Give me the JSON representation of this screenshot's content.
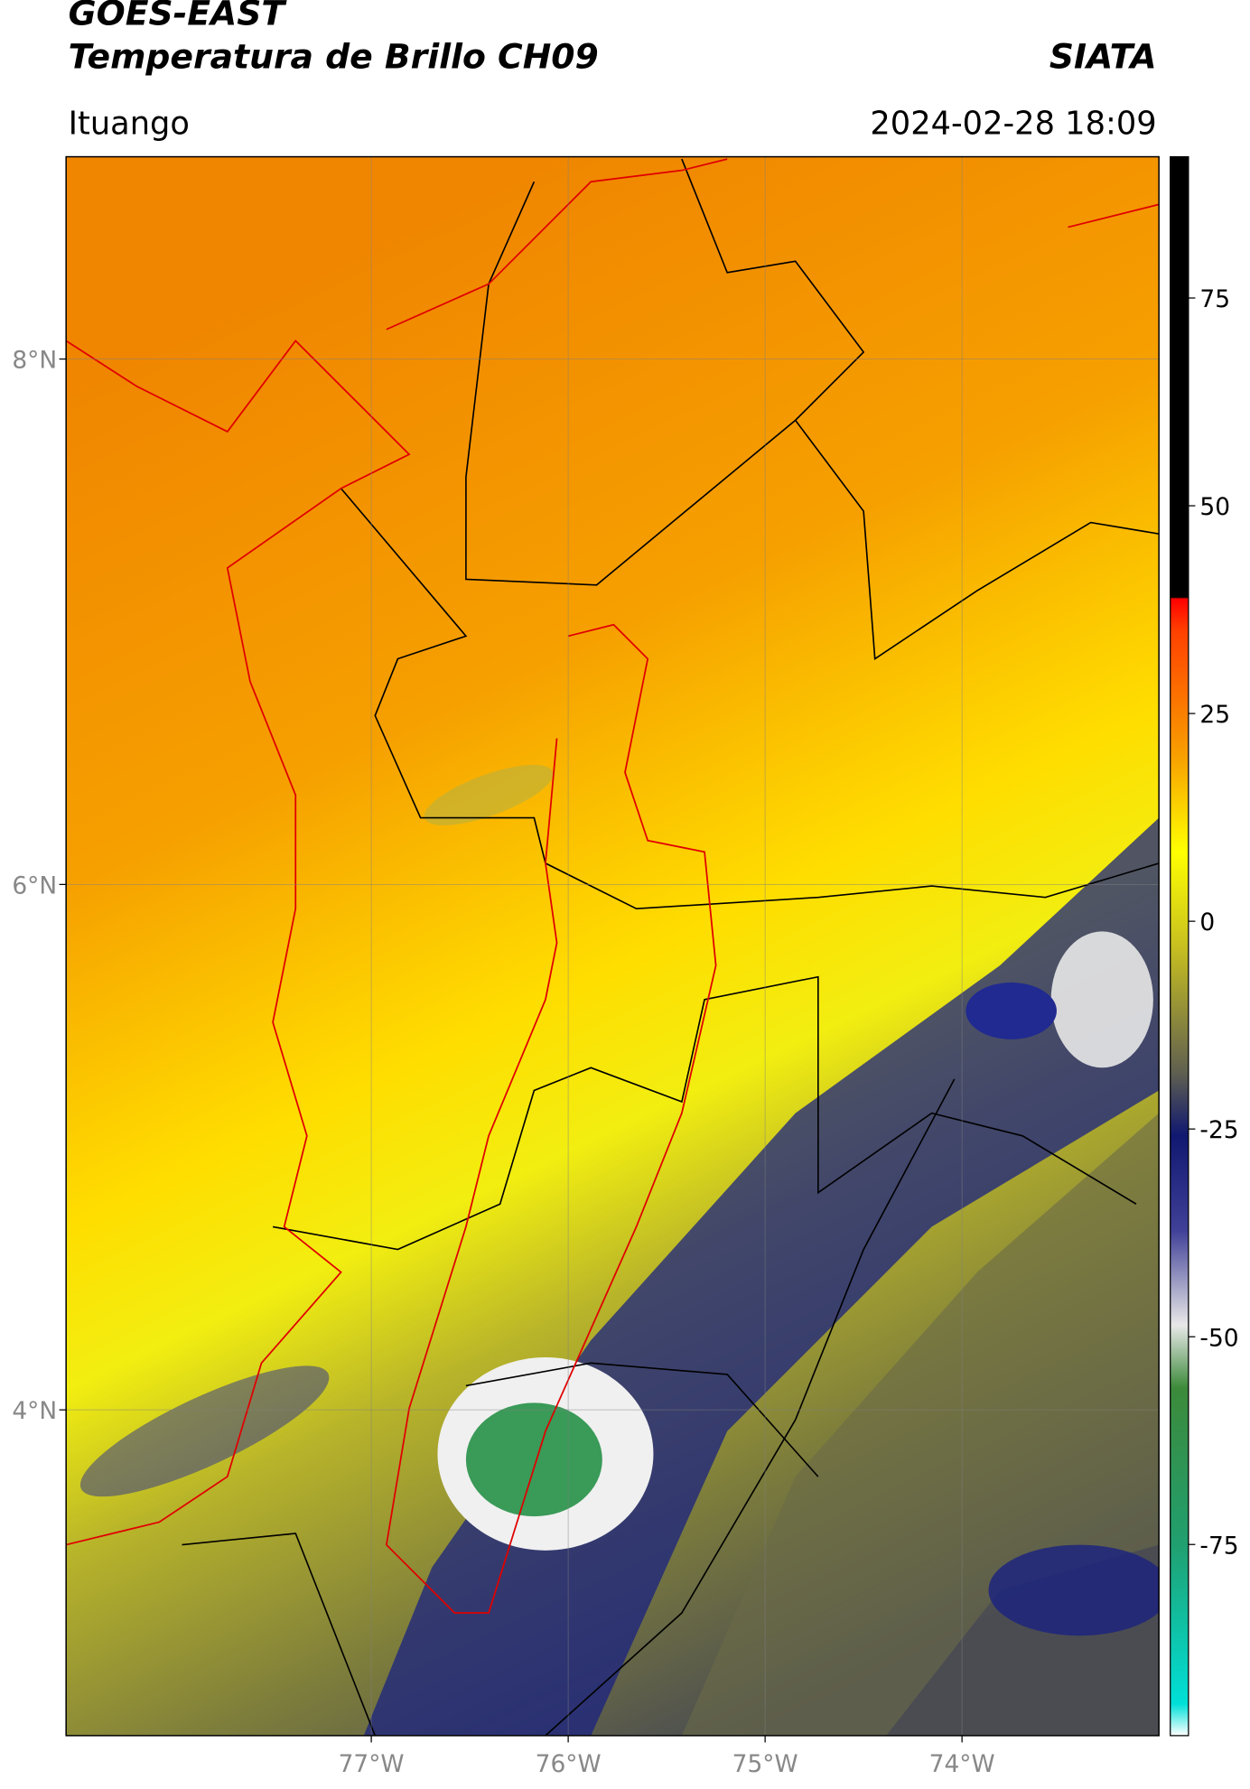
{
  "header": {
    "title_line1": "GOES-EAST",
    "title_line2": "Temperatura de Brillo CH09",
    "organization": "SIATA",
    "location": "Ituango",
    "datetime": "2024-02-28 18:09"
  },
  "map": {
    "lonlim": [
      -78.55,
      -73.0
    ],
    "latlim": [
      2.76,
      8.77
    ],
    "grid": true,
    "xticks": [
      {
        "value": -77,
        "label": "77°W"
      },
      {
        "value": -76,
        "label": "76°W"
      },
      {
        "value": -75,
        "label": "75°W"
      },
      {
        "value": -74,
        "label": "74°W"
      }
    ],
    "yticks": [
      {
        "value": 8,
        "label": "8°N"
      },
      {
        "value": 6,
        "label": "6°N"
      },
      {
        "value": 4,
        "label": "4°N"
      }
    ]
  },
  "colorbar": {
    "lim": [
      -98,
      92
    ],
    "ticks": [
      75,
      50,
      25,
      0,
      -25,
      -50,
      -75
    ]
  }
}
